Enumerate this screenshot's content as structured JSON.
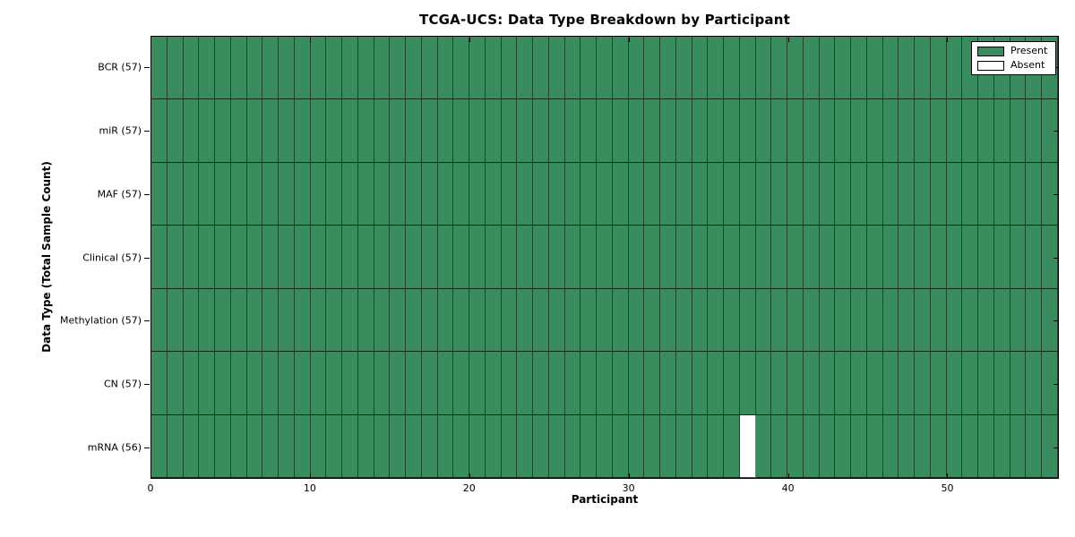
{
  "chart_data": {
    "type": "heatmap",
    "title": "TCGA-UCS: Data Type Breakdown by Participant",
    "xlabel": "Participant",
    "ylabel": "Data Type (Total Sample Count)",
    "n_participants": 57,
    "xlim": [
      0,
      57
    ],
    "x_ticks": [
      0,
      10,
      20,
      30,
      40,
      50
    ],
    "rows": [
      {
        "label": "BCR",
        "count": 57,
        "tick_label": "BCR (57)",
        "absent_participants": []
      },
      {
        "label": "miR",
        "count": 57,
        "tick_label": "miR (57)",
        "absent_participants": []
      },
      {
        "label": "MAF",
        "count": 57,
        "tick_label": "MAF (57)",
        "absent_participants": []
      },
      {
        "label": "Clinical",
        "count": 57,
        "tick_label": "Clinical (57)",
        "absent_participants": []
      },
      {
        "label": "Methylation",
        "count": 57,
        "tick_label": "Methylation (57)",
        "absent_participants": []
      },
      {
        "label": "CN",
        "count": 57,
        "tick_label": "CN (57)",
        "absent_participants": []
      },
      {
        "label": "mRNA",
        "count": 56,
        "tick_label": "mRNA (56)",
        "absent_participants": [
          37
        ]
      }
    ],
    "legend": {
      "position": "upper right",
      "entries": [
        {
          "label": "Present",
          "color": "#388c5e"
        },
        {
          "label": "Absent",
          "color": "#ffffff"
        }
      ]
    },
    "colors": {
      "present": "#388c5e",
      "absent": "#ffffff",
      "frame": "#000000"
    },
    "grid": "cell-borders"
  }
}
